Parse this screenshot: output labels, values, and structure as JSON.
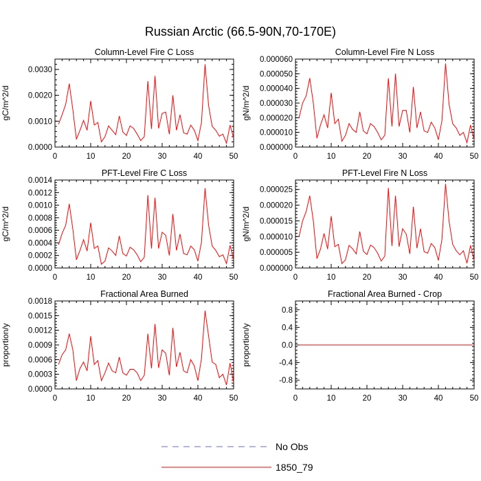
{
  "figure": {
    "title": "Russian Arctic (66.5-90N,70-170E)"
  },
  "legend": {
    "entries": [
      {
        "label": "No Obs",
        "color": "#6a6ad8",
        "style": "dashed"
      },
      {
        "label": "1850_79",
        "color": "#ff0000",
        "style": "solid"
      }
    ]
  },
  "chart_data": [
    {
      "type": "line",
      "title": "Column-Level Fire C Loss",
      "xlabel": "",
      "ylabel": "gC/m^2/d",
      "xlim": [
        0,
        50
      ],
      "ylim": [
        0,
        0.0034
      ],
      "x_ticks": [
        0,
        10,
        20,
        30,
        40,
        50
      ],
      "y_ticks": [
        "0.0000",
        "0.0010",
        "0.0020",
        "0.0030"
      ],
      "y_tick_values": [
        0,
        0.001,
        0.002,
        0.003
      ],
      "series": [
        {
          "name": "1850_79",
          "color": "#ff0000",
          "values": [
            0.00088,
            0.00125,
            0.00165,
            0.00245,
            0.00145,
            0.0003,
            0.00065,
            0.00103,
            0.00065,
            0.00178,
            0.00085,
            0.00095,
            0.0002,
            0.0004,
            0.00082,
            0.00065,
            0.00048,
            0.0012,
            0.00058,
            0.00045,
            0.00082,
            0.00072,
            0.0005,
            0.00025,
            0.0004,
            0.00255,
            0.0007,
            0.00275,
            0.00072,
            0.0013,
            0.00135,
            0.0005,
            0.002,
            0.00065,
            0.00125,
            0.00055,
            0.0005,
            0.00085,
            0.00065,
            0.00025,
            0.00095,
            0.0032,
            0.0016,
            0.0008,
            0.00065,
            0.00042,
            0.0005,
            0.00015,
            0.00085,
            0.00035
          ]
        }
      ]
    },
    {
      "type": "line",
      "title": "Column-Level Fire N Loss",
      "xlabel": "",
      "ylabel": "gN/m^2/d",
      "xlim": [
        0,
        50
      ],
      "ylim": [
        0,
        6e-05
      ],
      "x_ticks": [
        0,
        10,
        20,
        30,
        40,
        50
      ],
      "y_ticks": [
        "0.000000",
        "0.000010",
        "0.000020",
        "0.000030",
        "0.000040",
        "0.000050",
        "0.000060"
      ],
      "y_tick_values": [
        0,
        1e-05,
        2e-05,
        3e-05,
        4e-05,
        5e-05,
        6e-05
      ],
      "series": [
        {
          "name": "1850_79",
          "color": "#ff0000",
          "values": [
            2e-05,
            3e-05,
            3.5e-05,
            4.7e-05,
            3e-05,
            6e-06,
            1.5e-05,
            2.2e-05,
            1.3e-05,
            3.7e-05,
            1.6e-05,
            1.9e-05,
            4e-06,
            8e-06,
            1.6e-05,
            1.2e-05,
            1e-05,
            2.4e-05,
            1.1e-05,
            9e-06,
            1.6e-05,
            1.4e-05,
            1e-05,
            5e-06,
            8e-06,
            4.7e-05,
            1.4e-05,
            5e-05,
            1.4e-05,
            2.5e-05,
            2.5e-05,
            1e-05,
            4.1e-05,
            1.3e-05,
            2.4e-05,
            1.1e-05,
            1e-05,
            1.7e-05,
            1.3e-05,
            5e-06,
            1.8e-05,
            5.7e-05,
            2.9e-05,
            1.6e-05,
            1.3e-05,
            8e-06,
            1e-05,
            3e-06,
            1.5e-05,
            5e-06
          ]
        }
      ]
    },
    {
      "type": "line",
      "title": "PFT-Level Fire C Loss",
      "xlabel": "",
      "ylabel": "gC/m^2/d",
      "xlim": [
        0,
        50
      ],
      "ylim": [
        0,
        0.0014
      ],
      "x_ticks": [
        0,
        10,
        20,
        30,
        40,
        50
      ],
      "y_ticks": [
        "0.0000",
        "0.0002",
        "0.0004",
        "0.0006",
        "0.0008",
        "0.0010",
        "0.0012",
        "0.0014"
      ],
      "y_tick_values": [
        0,
        0.0002,
        0.0004,
        0.0006,
        0.0008,
        0.001,
        0.0012,
        0.0014
      ],
      "series": [
        {
          "name": "1850_79",
          "color": "#ff0000",
          "values": [
            0.00037,
            0.00055,
            0.00068,
            0.00102,
            0.00062,
            0.00013,
            0.00028,
            0.00045,
            0.00027,
            0.00072,
            0.00031,
            0.00035,
            6e-05,
            0.00011,
            0.00032,
            0.00027,
            0.0002,
            0.00051,
            0.00023,
            0.00019,
            0.00033,
            0.00029,
            0.00021,
            0.0001,
            0.00017,
            0.00116,
            0.00031,
            0.00112,
            0.00031,
            0.00057,
            0.00052,
            0.0002,
            0.00086,
            0.00028,
            0.00054,
            0.00023,
            0.00021,
            0.00035,
            0.00029,
            0.00011,
            0.00041,
            0.00127,
            0.00068,
            0.00035,
            0.00028,
            0.00018,
            0.00021,
            7e-05,
            0.00036,
            0.00013
          ]
        }
      ]
    },
    {
      "type": "line",
      "title": "PFT-Level Fire N Loss",
      "xlabel": "",
      "ylabel": "gN/m^2/d",
      "xlim": [
        0,
        50
      ],
      "ylim": [
        0,
        2.8e-05
      ],
      "x_ticks": [
        0,
        10,
        20,
        30,
        40,
        50
      ],
      "y_ticks": [
        "0.000000",
        "0.000005",
        "0.000010",
        "0.000015",
        "0.000020",
        "0.000025"
      ],
      "y_tick_values": [
        0,
        5e-06,
        1e-05,
        1.5e-05,
        2e-05,
        2.5e-05
      ],
      "series": [
        {
          "name": "1850_79",
          "color": "#ff0000",
          "values": [
            1e-05,
            1.5e-05,
            1.8e-05,
            2.3e-05,
            1.5e-05,
            3e-06,
            6e-06,
            1.1e-05,
            6e-06,
            1.65e-05,
            6.8e-06,
            7.5e-06,
            1.4e-06,
            2.6e-06,
            7.2e-06,
            6.1e-06,
            4.5e-06,
            1.16e-05,
            5.3e-06,
            4.3e-06,
            7.3e-06,
            6.5e-06,
            4.7e-06,
            2.2e-06,
            3.8e-06,
            2.55e-05,
            7e-06,
            2.3e-05,
            6.8e-06,
            1.25e-05,
            1.08e-05,
            4.5e-06,
            1.95e-05,
            6.3e-06,
            1.25e-05,
            5.2e-06,
            4.7e-06,
            7.8e-06,
            6.5e-06,
            2.4e-06,
            9.2e-06,
            2.68e-05,
            1.48e-05,
            7.5e-06,
            5.5e-06,
            4.2e-06,
            5.5e-06,
            1.5e-06,
            7.2e-06,
            2.5e-06
          ]
        }
      ]
    },
    {
      "type": "line",
      "title": "Fractional Area Burned",
      "xlabel": "",
      "ylabel": "proportion/y",
      "xlim": [
        0,
        50
      ],
      "ylim": [
        0,
        0.0018
      ],
      "x_ticks": [
        0,
        10,
        20,
        30,
        40,
        50
      ],
      "y_ticks": [
        "0.0000",
        "0.0003",
        "0.0006",
        "0.0009",
        "0.0012",
        "0.0015",
        "0.0018"
      ],
      "y_tick_values": [
        0,
        0.0003,
        0.0006,
        0.0009,
        0.0012,
        0.0015,
        0.0018
      ],
      "series": [
        {
          "name": "1850_79",
          "color": "#ff0000",
          "values": [
            0.0005,
            0.0007,
            0.0008,
            0.00113,
            0.0008,
            0.00017,
            0.00042,
            0.00055,
            0.00037,
            0.00108,
            0.0005,
            0.00058,
            0.00017,
            0.00033,
            0.00053,
            0.00037,
            0.00033,
            0.00065,
            0.00033,
            0.00028,
            0.0004,
            0.0004,
            0.00033,
            0.00017,
            0.00028,
            0.00113,
            0.00042,
            0.00133,
            0.00043,
            0.0008,
            0.00073,
            0.00028,
            0.00125,
            0.00045,
            0.00075,
            0.00037,
            0.00033,
            0.0006,
            0.00047,
            0.00017,
            0.00062,
            0.0016,
            0.00108,
            0.00055,
            0.0005,
            0.00023,
            0.0003,
            8e-05,
            0.00053,
            0.00013
          ]
        }
      ]
    },
    {
      "type": "line",
      "title": "Fractional Area Burned - Crop",
      "xlabel": "",
      "ylabel": "proportion/y",
      "xlim": [
        0,
        50
      ],
      "ylim": [
        -1,
        1
      ],
      "x_ticks": [
        0,
        10,
        20,
        30,
        40,
        50
      ],
      "y_ticks": [
        "-0.8",
        "-0.4",
        "0.0",
        "0.4",
        "0.8"
      ],
      "y_tick_values": [
        -0.8,
        -0.4,
        0,
        0.4,
        0.8
      ],
      "series": [
        {
          "name": "1850_79",
          "color": "#ff0000",
          "values": [
            0,
            0,
            0,
            0,
            0,
            0,
            0,
            0,
            0,
            0,
            0,
            0,
            0,
            0,
            0,
            0,
            0,
            0,
            0,
            0,
            0,
            0,
            0,
            0,
            0,
            0,
            0,
            0,
            0,
            0,
            0,
            0,
            0,
            0,
            0,
            0,
            0,
            0,
            0,
            0,
            0,
            0,
            0,
            0,
            0,
            0,
            0,
            0,
            0,
            0
          ]
        }
      ]
    }
  ]
}
